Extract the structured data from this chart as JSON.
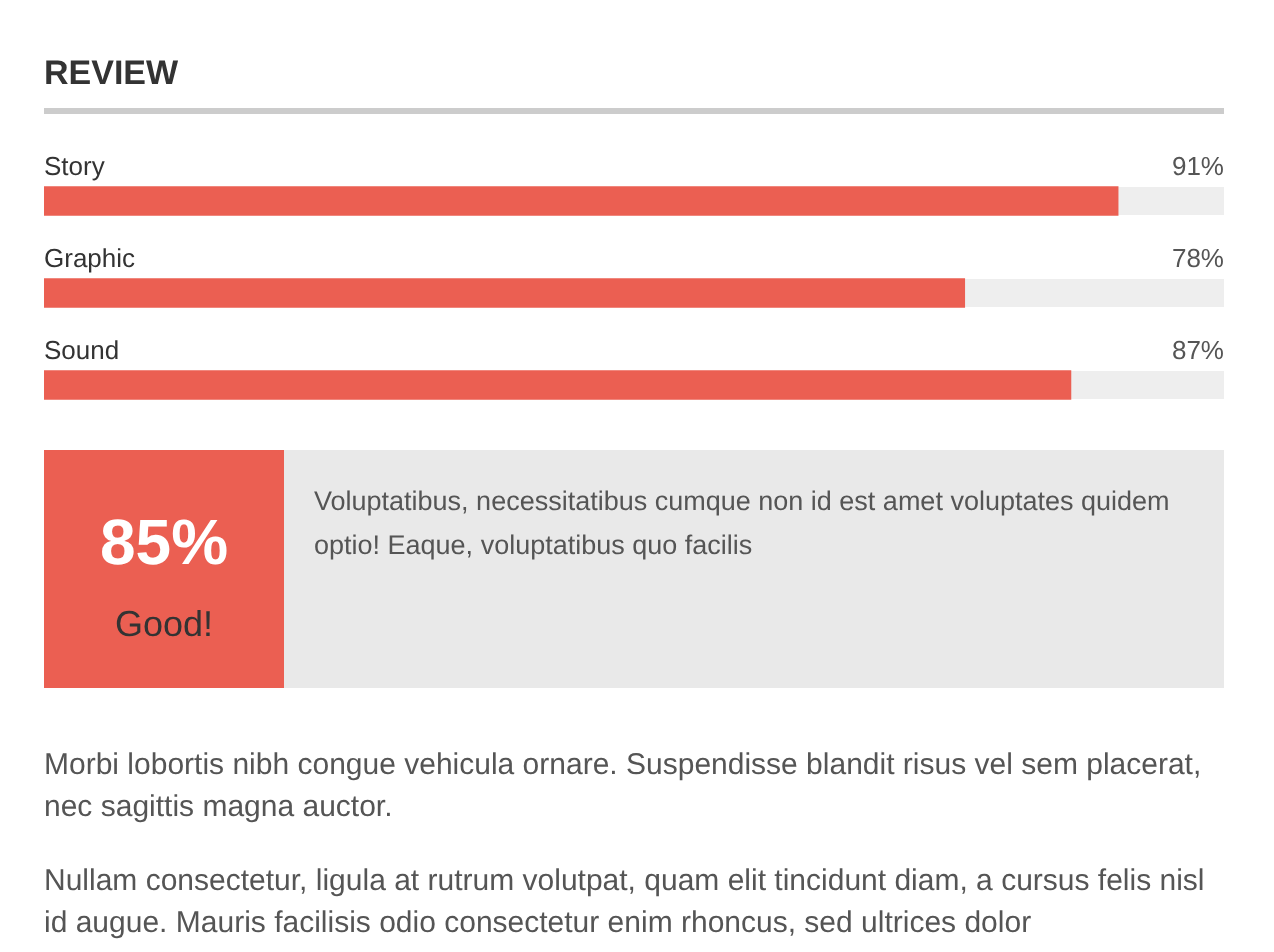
{
  "chart_data": [
    {
      "type": "bar",
      "title": "REVIEW",
      "orientation": "horizontal",
      "categories": [
        "Story",
        "Graphic",
        "Sound"
      ],
      "values": [
        91,
        78,
        87
      ],
      "value_labels": [
        "91%",
        "78%",
        "87%"
      ],
      "color": "#eb5f52",
      "xlim": [
        0,
        100
      ],
      "tick_labels": "y"
    },
    {
      "type": "other",
      "title": "85%",
      "subtitle": "Good!",
      "annotations": [
        "Voluptatibus, necessitatibus cumque non id est amet voluptates quidem optio! Eaque, voluptatibus quo facilis"
      ]
    },
    {
      "type": "other",
      "annotations": [
        "Morbi lobortis nibh congue vehicula ornare. Suspendisse blandit risus vel sem placerat, nec sagittis magna auctor.",
        "Nullam consectetur, ligula at rutrum volutpat, quam elit tincidunt diam, a cursus felis nisl id augue. Mauris facilisis odio consectetur enim rhoncus, sed ultrices dolor"
      ]
    }
  ]
}
